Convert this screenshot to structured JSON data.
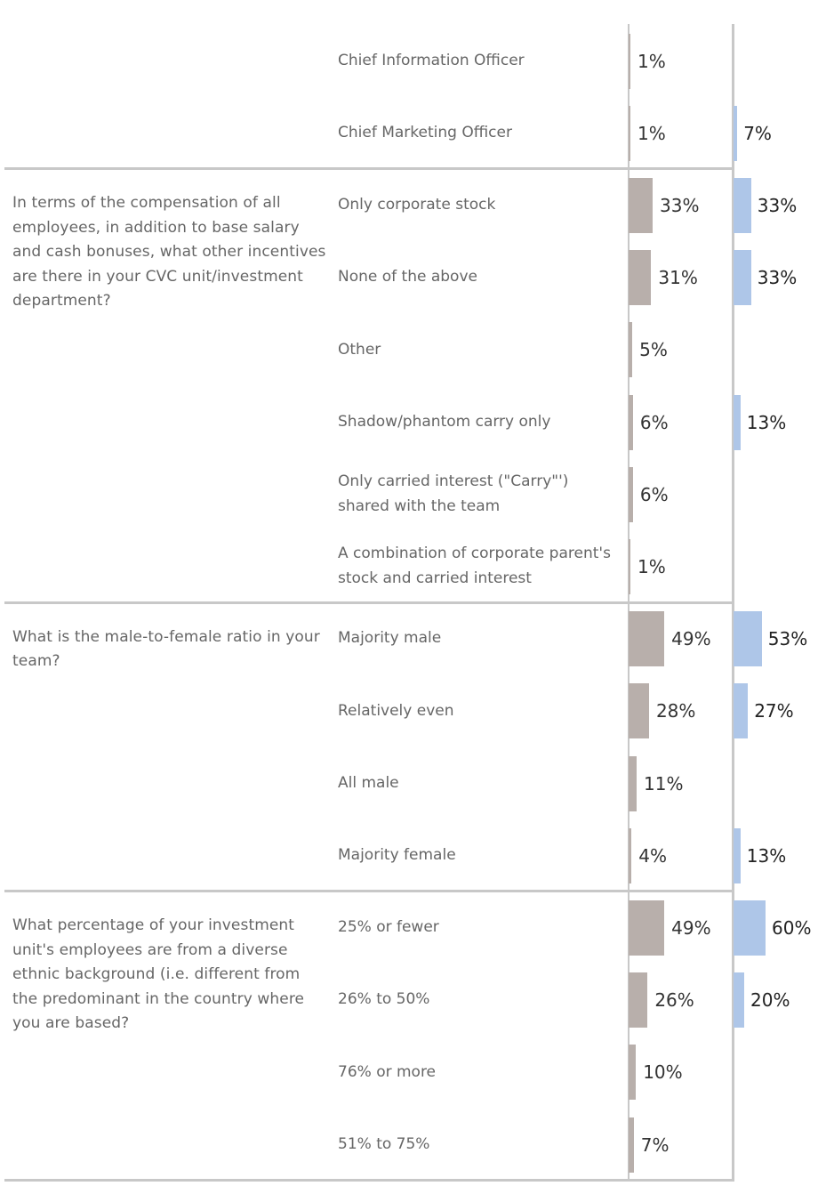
{
  "chart_data": {
    "type": "bar",
    "orientation": "horizontal",
    "series_colors": {
      "gray": "#b8afab",
      "blue": "#aec6e8"
    },
    "groups": [
      {
        "question": "",
        "rows": [
          {
            "label": "Chief Information Officer",
            "gray": 1,
            "gray_label": "1%",
            "blue": null,
            "blue_label": ""
          },
          {
            "label": "Chief Marketing Officer",
            "gray": 1,
            "gray_label": "1%",
            "blue": 7,
            "blue_label": "7%"
          }
        ]
      },
      {
        "question": "In terms of the compensation of all employees, in addition to base salary and cash bonuses, what other incentives are there in your CVC unit/investment department?",
        "rows": [
          {
            "label": "Only corporate stock",
            "gray": 33,
            "gray_label": "33%",
            "blue": 33,
            "blue_label": "33%"
          },
          {
            "label": "None of the above",
            "gray": 31,
            "gray_label": "31%",
            "blue": 33,
            "blue_label": "33%"
          },
          {
            "label": "Other",
            "gray": 5,
            "gray_label": "5%",
            "blue": null,
            "blue_label": ""
          },
          {
            "label": "Shadow/phantom carry only",
            "gray": 6,
            "gray_label": "6%",
            "blue": 13,
            "blue_label": "13%"
          },
          {
            "label": "Only carried interest (\"Carry\"') shared with the team",
            "gray": 6,
            "gray_label": "6%",
            "blue": null,
            "blue_label": ""
          },
          {
            "label": "A combination of corporate parent's stock and carried interest",
            "gray": 1,
            "gray_label": "1%",
            "blue": null,
            "blue_label": ""
          }
        ]
      },
      {
        "question": "What is the male-to-female ratio in your team?",
        "rows": [
          {
            "label": "Majority male",
            "gray": 49,
            "gray_label": "49%",
            "blue": 53,
            "blue_label": "53%"
          },
          {
            "label": "Relatively even",
            "gray": 28,
            "gray_label": "28%",
            "blue": 27,
            "blue_label": "27%"
          },
          {
            "label": "All male",
            "gray": 11,
            "gray_label": "11%",
            "blue": null,
            "blue_label": ""
          },
          {
            "label": "Majority female",
            "gray": 4,
            "gray_label": "4%",
            "blue": 13,
            "blue_label": "13%"
          }
        ]
      },
      {
        "question": "What percentage of your investment unit's employees are from a diverse ethnic background (i.e. different from the predominant in the country where you are based?",
        "rows": [
          {
            "label": "25% or fewer",
            "gray": 49,
            "gray_label": "49%",
            "blue": 60,
            "blue_label": "60%"
          },
          {
            "label": "26% to 50%",
            "gray": 26,
            "gray_label": "26%",
            "blue": 20,
            "blue_label": "20%"
          },
          {
            "label": "76% or more",
            "gray": 10,
            "gray_label": "10%",
            "blue": null,
            "blue_label": ""
          },
          {
            "label": "51% to 75%",
            "gray": 7,
            "gray_label": "7%",
            "blue": null,
            "blue_label": ""
          }
        ]
      }
    ]
  }
}
